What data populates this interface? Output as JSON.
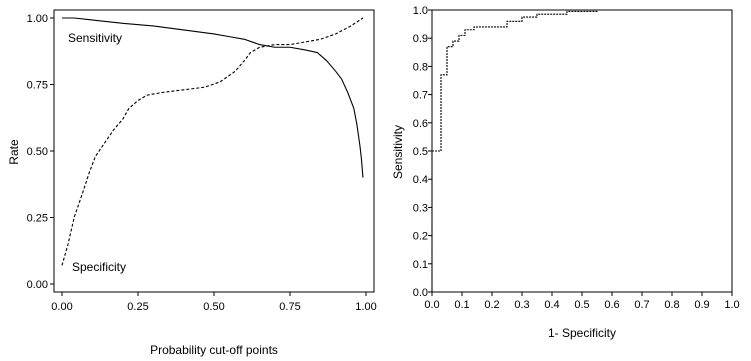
{
  "chart_data": [
    {
      "type": "line",
      "title": "",
      "xlabel": "Probability cut-off points",
      "ylabel": "Rate",
      "xlim": [
        0,
        1
      ],
      "ylim": [
        0,
        1
      ],
      "xticks": [
        "0.00",
        "0.25",
        "0.50",
        "0.75",
        "1.00"
      ],
      "yticks": [
        "0.00",
        "0.25",
        "0.50",
        "0.75",
        "1.00"
      ],
      "grid": false,
      "annotations": [
        "Sensitivity",
        "Specificity"
      ],
      "series": [
        {
          "name": "Sensitivity",
          "style": "solid",
          "x": [
            0.0,
            0.04,
            0.08,
            0.12,
            0.2,
            0.3,
            0.4,
            0.5,
            0.55,
            0.6,
            0.65,
            0.7,
            0.75,
            0.8,
            0.84,
            0.87,
            0.9,
            0.92,
            0.94,
            0.96,
            0.97,
            0.98,
            0.985,
            0.99
          ],
          "y": [
            1.0,
            1.0,
            0.995,
            0.99,
            0.98,
            0.97,
            0.955,
            0.94,
            0.93,
            0.92,
            0.9,
            0.89,
            0.89,
            0.88,
            0.87,
            0.84,
            0.8,
            0.77,
            0.72,
            0.66,
            0.6,
            0.52,
            0.47,
            0.4
          ]
        },
        {
          "name": "Specificity",
          "style": "dashed",
          "x": [
            0.0,
            0.02,
            0.04,
            0.07,
            0.09,
            0.11,
            0.14,
            0.17,
            0.2,
            0.22,
            0.25,
            0.28,
            0.33,
            0.4,
            0.47,
            0.52,
            0.57,
            0.6,
            0.62,
            0.65,
            0.7,
            0.75,
            0.8,
            0.85,
            0.9,
            0.95,
            0.99
          ],
          "y": [
            0.07,
            0.15,
            0.25,
            0.35,
            0.42,
            0.48,
            0.53,
            0.58,
            0.62,
            0.66,
            0.69,
            0.71,
            0.72,
            0.73,
            0.74,
            0.76,
            0.8,
            0.84,
            0.87,
            0.89,
            0.9,
            0.9,
            0.91,
            0.92,
            0.94,
            0.97,
            1.0
          ]
        }
      ]
    },
    {
      "type": "line",
      "title": "",
      "xlabel": "1- Specificity",
      "ylabel": "Sensitivity",
      "xlim": [
        0,
        1
      ],
      "ylim": [
        0,
        1
      ],
      "xticks": [
        "0.0",
        "0.1",
        "0.2",
        "0.3",
        "0.4",
        "0.5",
        "0.6",
        "0.7",
        "0.8",
        "0.9",
        "1.0"
      ],
      "yticks": [
        "0.0",
        "0.1",
        "0.2",
        "0.3",
        "0.4",
        "0.5",
        "0.6",
        "0.7",
        "0.8",
        "0.9",
        "1.0"
      ],
      "grid": false,
      "series": [
        {
          "name": "",
          "style": "step",
          "x": [
            0.0,
            0.0,
            0.03,
            0.03,
            0.05,
            0.05,
            0.07,
            0.07,
            0.09,
            0.09,
            0.11,
            0.11,
            0.14,
            0.14,
            0.25,
            0.25,
            0.3,
            0.3,
            0.35,
            0.35,
            0.45,
            0.45,
            0.55,
            0.55,
            0.6,
            0.6,
            1.0
          ],
          "y": [
            0.0,
            0.5,
            0.5,
            0.77,
            0.77,
            0.87,
            0.87,
            0.89,
            0.89,
            0.91,
            0.91,
            0.93,
            0.93,
            0.94,
            0.94,
            0.96,
            0.96,
            0.975,
            0.975,
            0.985,
            0.985,
            0.995,
            0.995,
            1.0,
            1.0,
            1.0,
            1.0
          ]
        }
      ]
    }
  ]
}
